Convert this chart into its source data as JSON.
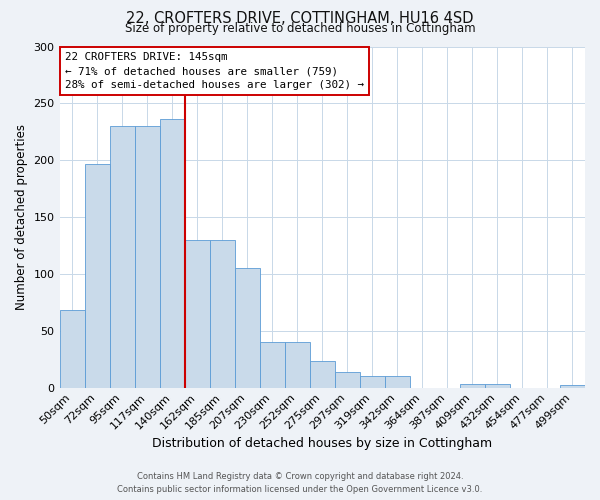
{
  "title": "22, CROFTERS DRIVE, COTTINGHAM, HU16 4SD",
  "subtitle": "Size of property relative to detached houses in Cottingham",
  "xlabel": "Distribution of detached houses by size in Cottingham",
  "ylabel": "Number of detached properties",
  "bar_labels": [
    "50sqm",
    "72sqm",
    "95sqm",
    "117sqm",
    "140sqm",
    "162sqm",
    "185sqm",
    "207sqm",
    "230sqm",
    "252sqm",
    "275sqm",
    "297sqm",
    "319sqm",
    "342sqm",
    "364sqm",
    "387sqm",
    "409sqm",
    "432sqm",
    "454sqm",
    "477sqm",
    "499sqm"
  ],
  "bar_values": [
    68,
    197,
    230,
    230,
    236,
    130,
    130,
    105,
    40,
    40,
    23,
    14,
    10,
    10,
    0,
    0,
    3,
    3,
    0,
    0,
    2
  ],
  "bar_color": "#c9daea",
  "bar_edge_color": "#5b9bd5",
  "vline_color": "#cc0000",
  "ylim": [
    0,
    300
  ],
  "yticks": [
    0,
    50,
    100,
    150,
    200,
    250,
    300
  ],
  "annotation_title": "22 CROFTERS DRIVE: 145sqm",
  "annotation_line1": "← 71% of detached houses are smaller (759)",
  "annotation_line2": "28% of semi-detached houses are larger (302) →",
  "annotation_box_color": "#ffffff",
  "annotation_box_edge_color": "#cc0000",
  "footer_line1": "Contains HM Land Registry data © Crown copyright and database right 2024.",
  "footer_line2": "Contains public sector information licensed under the Open Government Licence v3.0.",
  "background_color": "#eef2f7",
  "plot_background_color": "#ffffff",
  "grid_color": "#c8d8e8"
}
